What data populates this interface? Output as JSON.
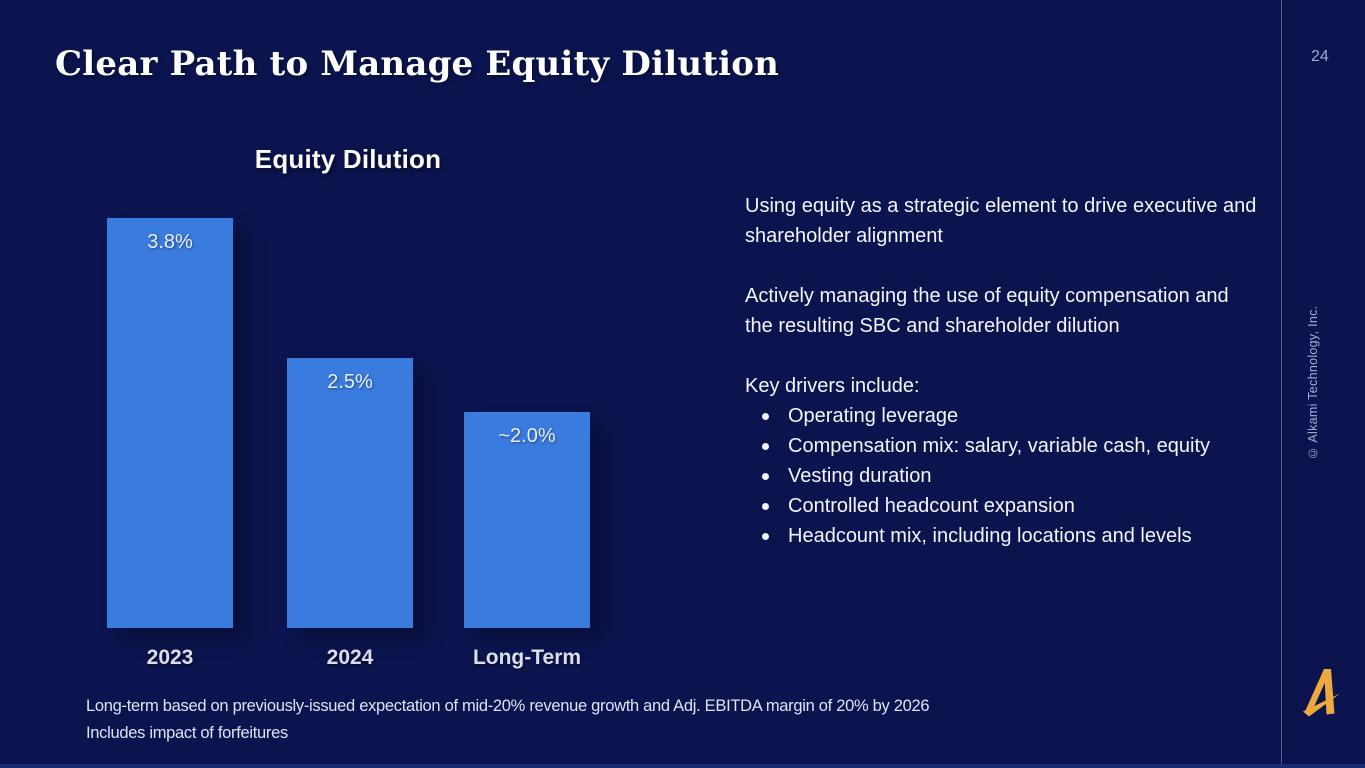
{
  "slide": {
    "title": "Clear Path to Manage Equity Dilution",
    "page_number": "24",
    "copyright_vertical": "© Alkami Technology, Inc.",
    "colors": {
      "background": "#0C1450",
      "bar_blue": "#3A7BDE",
      "accent_gold": "#EDA83E",
      "bottom_strip": "#1D2C72"
    }
  },
  "chart_data": {
    "type": "bar",
    "title": "Equity Dilution",
    "categories": [
      "2023",
      "2024",
      "Long-Term"
    ],
    "values": [
      3.8,
      2.5,
      2.0
    ],
    "data_labels": [
      "3.8%",
      "2.5%",
      "~2.0%"
    ],
    "unit": "percent",
    "ylim": [
      0,
      4.2
    ],
    "grid": false,
    "legend": "none",
    "bar_color": "#3A7BDE"
  },
  "right_column": {
    "paragraphs": [
      "Using equity as a strategic element to drive executive and shareholder alignment",
      "Actively managing the use of equity compensation and the resulting SBC and shareholder dilution"
    ],
    "key_drivers_heading": "Key drivers include:",
    "bullets": [
      "Operating leverage",
      "Compensation mix: salary, variable cash, equity",
      "Vesting duration",
      "Controlled headcount expansion",
      "Headcount mix, including locations and levels"
    ]
  },
  "footnotes": [
    "Long-term based on previously-issued expectation of mid-20% revenue growth and Adj. EBITDA margin of 20% by 2026",
    "Includes impact of forfeitures"
  ]
}
